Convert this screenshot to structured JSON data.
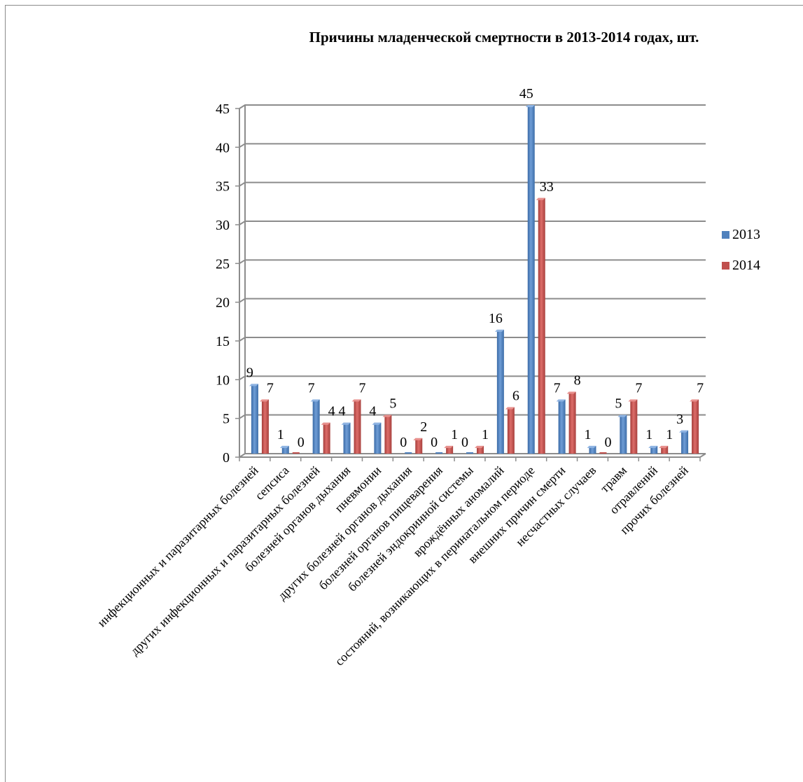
{
  "chart_data": {
    "type": "bar",
    "title": "Причины младенческой смертности в 2013-2014 годах, шт.",
    "xlabel": "",
    "ylabel": "",
    "ylim": [
      0,
      45
    ],
    "yticks": [
      0,
      5,
      10,
      15,
      20,
      25,
      30,
      35,
      40,
      45
    ],
    "grid": true,
    "legend_position": "right",
    "categories": [
      "инфекционных и паразитарных болезней",
      "сепсиса",
      "других инфекционных и паразитарных болезней",
      "болезней органов дыхания",
      "пневмонии",
      "других болезней органов дыхания",
      "болезней органов пищеварения",
      "болезней эндокринной системы",
      "врождённых аномалий",
      "состояний, возникающих в перинатальном периоде",
      "внешних причин смерти",
      "несчастных случаев",
      "травм",
      "отравлений",
      "прочих болезней"
    ],
    "series": [
      {
        "name": "2013",
        "color": "#4f81bd",
        "values": [
          9,
          1,
          7,
          4,
          4,
          0,
          0,
          0,
          16,
          45,
          7,
          1,
          5,
          1,
          3
        ]
      },
      {
        "name": "2014",
        "color": "#c0504d",
        "values": [
          7,
          0,
          4,
          7,
          5,
          2,
          1,
          1,
          6,
          33,
          8,
          0,
          7,
          1,
          7
        ]
      }
    ]
  }
}
